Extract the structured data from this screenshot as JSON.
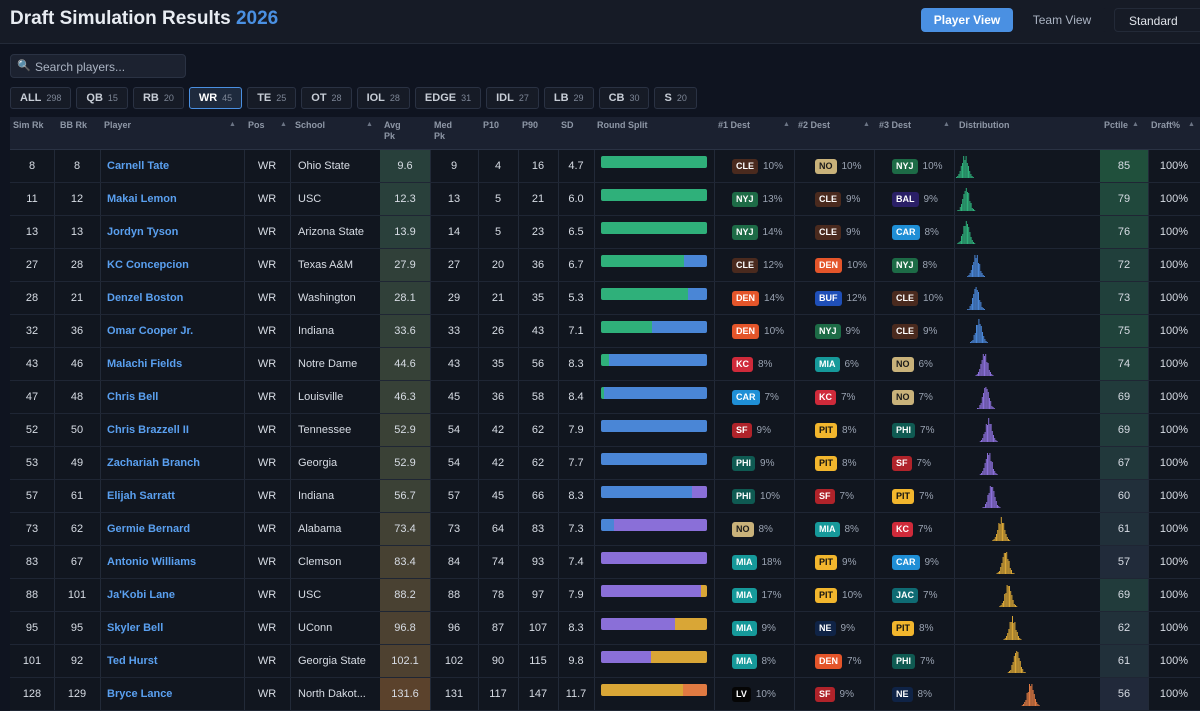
{
  "header": {
    "title_main": "Draft Simulation Results",
    "title_year": "2026",
    "player_view": "Player View",
    "team_view": "Team View",
    "format": "Standard"
  },
  "search": {
    "placeholder": "Search players...",
    "icon": "search-icon"
  },
  "filters": [
    {
      "label": "ALL",
      "count": "298"
    },
    {
      "label": "QB",
      "count": "15"
    },
    {
      "label": "RB",
      "count": "20"
    },
    {
      "label": "WR",
      "count": "45",
      "active": true
    },
    {
      "label": "TE",
      "count": "25"
    },
    {
      "label": "OT",
      "count": "28"
    },
    {
      "label": "IOL",
      "count": "28"
    },
    {
      "label": "EDGE",
      "count": "31"
    },
    {
      "label": "IDL",
      "count": "27"
    },
    {
      "label": "LB",
      "count": "29"
    },
    {
      "label": "CB",
      "count": "30"
    },
    {
      "label": "S",
      "count": "20"
    }
  ],
  "columns": {
    "sim_rk": "Sim Rk",
    "bb_rk": "BB Rk",
    "player": "Player",
    "pos": "Pos",
    "school": "School",
    "avg_pk": "Avg Pk",
    "med_pk": "Med Pk",
    "p10": "P10",
    "p90": "P90",
    "sd": "SD",
    "round_split": "Round Split",
    "dest1": "#1 Dest",
    "dest2": "#2 Dest",
    "dest3": "#3 Dest",
    "distribution": "Distribution",
    "pctile": "Pctile",
    "drafted": "Draft%"
  },
  "colors": {
    "r1": "#2fb07a",
    "r2": "#4a86d6",
    "r3": "#8a6fd8",
    "r4": "#d9a636",
    "r5": "#e07a42"
  },
  "team_colors": {
    "CLE": {
      "bg": "#4a2a1e",
      "fg": "#ffffff"
    },
    "NO": {
      "bg": "#c9b27a",
      "fg": "#1a1a1a"
    },
    "NYJ": {
      "bg": "#1d6b46",
      "fg": "#ffffff"
    },
    "BAL": {
      "bg": "#2a1f66",
      "fg": "#ffffff"
    },
    "CAR": {
      "bg": "#1f8fd6",
      "fg": "#ffffff"
    },
    "DEN": {
      "bg": "#e4552a",
      "fg": "#ffffff"
    },
    "BUF": {
      "bg": "#1f4fb8",
      "fg": "#ffffff"
    },
    "KC": {
      "bg": "#cf2a3a",
      "fg": "#ffffff"
    },
    "MIA": {
      "bg": "#16999a",
      "fg": "#ffffff"
    },
    "SF": {
      "bg": "#b0232a",
      "fg": "#ffffff"
    },
    "PIT": {
      "bg": "#f2b62d",
      "fg": "#111111"
    },
    "PHI": {
      "bg": "#0f5a52",
      "fg": "#ffffff"
    },
    "JAC": {
      "bg": "#0f6b73",
      "fg": "#ffffff"
    },
    "NE": {
      "bg": "#0f2346",
      "fg": "#ffffff"
    },
    "LV": {
      "bg": "#050505",
      "fg": "#ffffff"
    }
  },
  "rows": [
    {
      "sim": "8",
      "bb": "8",
      "player": "Carnell Tate",
      "pos": "WR",
      "school": "Ohio State",
      "avg": "9.6",
      "med": "9",
      "p10": "4",
      "p90": "16",
      "sd": "4.7",
      "split": [
        100,
        0,
        0,
        0,
        0
      ],
      "d1": [
        "CLE",
        "10%"
      ],
      "d2": [
        "NO",
        "10%"
      ],
      "d3": [
        "NYJ",
        "10%"
      ],
      "pct": "85",
      "draft": "100%",
      "dist_center": 0.06,
      "dist_color": "r1"
    },
    {
      "sim": "11",
      "bb": "12",
      "player": "Makai Lemon",
      "pos": "WR",
      "school": "USC",
      "avg": "12.3",
      "med": "13",
      "p10": "5",
      "p90": "21",
      "sd": "6.0",
      "split": [
        100,
        0,
        0,
        0,
        0
      ],
      "d1": [
        "NYJ",
        "13%"
      ],
      "d2": [
        "CLE",
        "9%"
      ],
      "d3": [
        "BAL",
        "9%"
      ],
      "pct": "79",
      "draft": "100%",
      "dist_center": 0.07,
      "dist_color": "r1"
    },
    {
      "sim": "13",
      "bb": "13",
      "player": "Jordyn Tyson",
      "pos": "WR",
      "school": "Arizona State",
      "avg": "13.9",
      "med": "14",
      "p10": "5",
      "p90": "23",
      "sd": "6.5",
      "split": [
        100,
        0,
        0,
        0,
        0
      ],
      "d1": [
        "NYJ",
        "14%"
      ],
      "d2": [
        "CLE",
        "9%"
      ],
      "d3": [
        "CAR",
        "8%"
      ],
      "pct": "76",
      "draft": "100%",
      "dist_center": 0.07,
      "dist_color": "r1"
    },
    {
      "sim": "27",
      "bb": "28",
      "player": "KC Concepcion",
      "pos": "WR",
      "school": "Texas A&M",
      "avg": "27.9",
      "med": "27",
      "p10": "20",
      "p90": "36",
      "sd": "6.7",
      "split": [
        78,
        22,
        0,
        0,
        0
      ],
      "d1": [
        "CLE",
        "12%"
      ],
      "d2": [
        "DEN",
        "10%"
      ],
      "d3": [
        "NYJ",
        "8%"
      ],
      "pct": "72",
      "draft": "100%",
      "dist_center": 0.14,
      "dist_color": "r2"
    },
    {
      "sim": "28",
      "bb": "21",
      "player": "Denzel Boston",
      "pos": "WR",
      "school": "Washington",
      "avg": "28.1",
      "med": "29",
      "p10": "21",
      "p90": "35",
      "sd": "5.3",
      "split": [
        82,
        18,
        0,
        0,
        0
      ],
      "d1": [
        "DEN",
        "14%"
      ],
      "d2": [
        "BUF",
        "12%"
      ],
      "d3": [
        "CLE",
        "10%"
      ],
      "pct": "73",
      "draft": "100%",
      "dist_center": 0.14,
      "dist_color": "r2"
    },
    {
      "sim": "32",
      "bb": "36",
      "player": "Omar Cooper Jr.",
      "pos": "WR",
      "school": "Indiana",
      "avg": "33.6",
      "med": "33",
      "p10": "26",
      "p90": "43",
      "sd": "7.1",
      "split": [
        48,
        52,
        0,
        0,
        0
      ],
      "d1": [
        "DEN",
        "10%"
      ],
      "d2": [
        "NYJ",
        "9%"
      ],
      "d3": [
        "CLE",
        "9%"
      ],
      "pct": "75",
      "draft": "100%",
      "dist_center": 0.16,
      "dist_color": "r2"
    },
    {
      "sim": "43",
      "bb": "46",
      "player": "Malachi Fields",
      "pos": "WR",
      "school": "Notre Dame",
      "avg": "44.6",
      "med": "43",
      "p10": "35",
      "p90": "56",
      "sd": "8.3",
      "split": [
        8,
        92,
        0,
        0,
        0
      ],
      "d1": [
        "KC",
        "8%"
      ],
      "d2": [
        "MIA",
        "6%"
      ],
      "d3": [
        "NO",
        "6%"
      ],
      "pct": "74",
      "draft": "100%",
      "dist_center": 0.2,
      "dist_color": "r3"
    },
    {
      "sim": "47",
      "bb": "48",
      "player": "Chris Bell",
      "pos": "WR",
      "school": "Louisville",
      "avg": "46.3",
      "med": "45",
      "p10": "36",
      "p90": "58",
      "sd": "8.4",
      "split": [
        3,
        97,
        0,
        0,
        0
      ],
      "d1": [
        "CAR",
        "7%"
      ],
      "d2": [
        "KC",
        "7%"
      ],
      "d3": [
        "NO",
        "7%"
      ],
      "pct": "69",
      "draft": "100%",
      "dist_center": 0.21,
      "dist_color": "r3"
    },
    {
      "sim": "52",
      "bb": "50",
      "player": "Chris Brazzell II",
      "pos": "WR",
      "school": "Tennessee",
      "avg": "52.9",
      "med": "54",
      "p10": "42",
      "p90": "62",
      "sd": "7.9",
      "split": [
        0,
        100,
        0,
        0,
        0
      ],
      "d1": [
        "SF",
        "9%"
      ],
      "d2": [
        "PIT",
        "8%"
      ],
      "d3": [
        "PHI",
        "7%"
      ],
      "pct": "69",
      "draft": "100%",
      "dist_center": 0.23,
      "dist_color": "r3"
    },
    {
      "sim": "53",
      "bb": "49",
      "player": "Zachariah Branch",
      "pos": "WR",
      "school": "Georgia",
      "avg": "52.9",
      "med": "54",
      "p10": "42",
      "p90": "62",
      "sd": "7.7",
      "split": [
        0,
        100,
        0,
        0,
        0
      ],
      "d1": [
        "PHI",
        "9%"
      ],
      "d2": [
        "PIT",
        "8%"
      ],
      "d3": [
        "SF",
        "7%"
      ],
      "pct": "67",
      "draft": "100%",
      "dist_center": 0.23,
      "dist_color": "r3"
    },
    {
      "sim": "57",
      "bb": "61",
      "player": "Elijah Sarratt",
      "pos": "WR",
      "school": "Indiana",
      "avg": "56.7",
      "med": "57",
      "p10": "45",
      "p90": "66",
      "sd": "8.3",
      "split": [
        0,
        86,
        14,
        0,
        0
      ],
      "d1": [
        "PHI",
        "10%"
      ],
      "d2": [
        "SF",
        "7%"
      ],
      "d3": [
        "PIT",
        "7%"
      ],
      "pct": "60",
      "draft": "100%",
      "dist_center": 0.25,
      "dist_color": "r3"
    },
    {
      "sim": "73",
      "bb": "62",
      "player": "Germie Bernard",
      "pos": "WR",
      "school": "Alabama",
      "avg": "73.4",
      "med": "73",
      "p10": "64",
      "p90": "83",
      "sd": "7.3",
      "split": [
        0,
        12,
        88,
        0,
        0
      ],
      "d1": [
        "NO",
        "8%"
      ],
      "d2": [
        "MIA",
        "8%"
      ],
      "d3": [
        "KC",
        "7%"
      ],
      "pct": "61",
      "draft": "100%",
      "dist_center": 0.32,
      "dist_color": "r4"
    },
    {
      "sim": "83",
      "bb": "67",
      "player": "Antonio Williams",
      "pos": "WR",
      "school": "Clemson",
      "avg": "83.4",
      "med": "84",
      "p10": "74",
      "p90": "93",
      "sd": "7.4",
      "split": [
        0,
        0,
        100,
        0,
        0
      ],
      "d1": [
        "MIA",
        "18%"
      ],
      "d2": [
        "PIT",
        "9%"
      ],
      "d3": [
        "CAR",
        "9%"
      ],
      "pct": "57",
      "draft": "100%",
      "dist_center": 0.35,
      "dist_color": "r4"
    },
    {
      "sim": "88",
      "bb": "101",
      "player": "Ja'Kobi Lane",
      "pos": "WR",
      "school": "USC",
      "avg": "88.2",
      "med": "88",
      "p10": "78",
      "p90": "97",
      "sd": "7.9",
      "split": [
        0,
        0,
        94,
        6,
        0
      ],
      "d1": [
        "MIA",
        "17%"
      ],
      "d2": [
        "PIT",
        "10%"
      ],
      "d3": [
        "JAC",
        "7%"
      ],
      "pct": "69",
      "draft": "100%",
      "dist_center": 0.37,
      "dist_color": "r4"
    },
    {
      "sim": "95",
      "bb": "95",
      "player": "Skyler Bell",
      "pos": "WR",
      "school": "UConn",
      "avg": "96.8",
      "med": "96",
      "p10": "87",
      "p90": "107",
      "sd": "8.3",
      "split": [
        0,
        0,
        70,
        30,
        0
      ],
      "d1": [
        "MIA",
        "9%"
      ],
      "d2": [
        "NE",
        "9%"
      ],
      "d3": [
        "PIT",
        "8%"
      ],
      "pct": "62",
      "draft": "100%",
      "dist_center": 0.4,
      "dist_color": "r4"
    },
    {
      "sim": "101",
      "bb": "92",
      "player": "Ted Hurst",
      "pos": "WR",
      "school": "Georgia State",
      "avg": "102.1",
      "med": "102",
      "p10": "90",
      "p90": "115",
      "sd": "9.8",
      "split": [
        0,
        0,
        47,
        53,
        0
      ],
      "d1": [
        "MIA",
        "8%"
      ],
      "d2": [
        "DEN",
        "7%"
      ],
      "d3": [
        "PHI",
        "7%"
      ],
      "pct": "61",
      "draft": "100%",
      "dist_center": 0.43,
      "dist_color": "r4"
    },
    {
      "sim": "128",
      "bb": "129",
      "player": "Bryce Lance",
      "pos": "WR",
      "school": "North Dakot...",
      "avg": "131.6",
      "med": "131",
      "p10": "117",
      "p90": "147",
      "sd": "11.7",
      "split": [
        0,
        0,
        0,
        77,
        23
      ],
      "d1": [
        "LV",
        "10%"
      ],
      "d2": [
        "SF",
        "9%"
      ],
      "d3": [
        "NE",
        "8%"
      ],
      "pct": "56",
      "draft": "100%",
      "dist_center": 0.53,
      "dist_color": "r5"
    }
  ]
}
